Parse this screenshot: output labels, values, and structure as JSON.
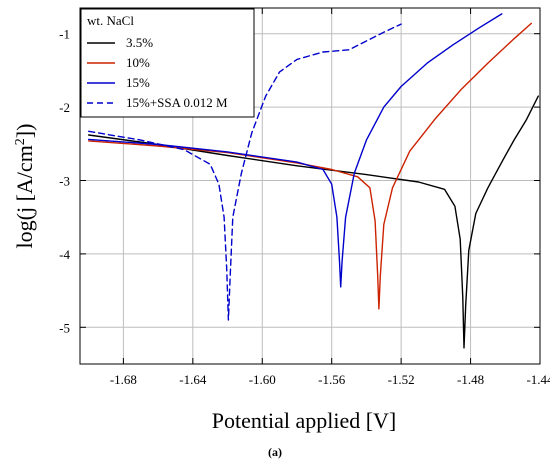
{
  "chart_data": {
    "type": "line",
    "title": "",
    "xlabel": "Potential applied [V]",
    "ylabel_main": "log(j [A/cm",
    "ylabel_sup": "2",
    "ylabel_end": "])",
    "xlim": [
      -1.705,
      -1.44
    ],
    "ylim": [
      -5.5,
      -0.65
    ],
    "x_ticks": [
      -1.68,
      -1.64,
      -1.6,
      -1.56,
      -1.52,
      -1.48,
      -1.44
    ],
    "x_tick_labels": [
      "-1.68",
      "-1.64",
      "-1.60",
      "-1.56",
      "-1.52",
      "-1.48",
      "-1.44"
    ],
    "y_ticks": [
      -5,
      -4,
      -3,
      -2,
      -1
    ],
    "y_tick_labels": [
      "-5",
      "-4",
      "-3",
      "-2",
      "-1"
    ],
    "grid": true,
    "legend_title": "wt. NaCl",
    "legend_placement": "top-left",
    "caption": "(a)",
    "series": [
      {
        "name": "3.5%",
        "color": "#000000",
        "dash": "solid",
        "points": [
          [
            -1.7,
            -2.38
          ],
          [
            -1.66,
            -2.51
          ],
          [
            -1.62,
            -2.66
          ],
          [
            -1.58,
            -2.8
          ],
          [
            -1.54,
            -2.92
          ],
          [
            -1.51,
            -3.02
          ],
          [
            -1.495,
            -3.12
          ],
          [
            -1.489,
            -3.35
          ],
          [
            -1.486,
            -3.8
          ],
          [
            -1.4845,
            -4.6
          ],
          [
            -1.4838,
            -5.28
          ],
          [
            -1.4828,
            -4.7
          ],
          [
            -1.481,
            -3.95
          ],
          [
            -1.477,
            -3.45
          ],
          [
            -1.47,
            -3.1
          ],
          [
            -1.462,
            -2.75
          ],
          [
            -1.455,
            -2.45
          ],
          [
            -1.448,
            -2.18
          ],
          [
            -1.441,
            -1.85
          ]
        ]
      },
      {
        "name": "10%",
        "color": "#cc2200",
        "dash": "solid",
        "points": [
          [
            -1.7,
            -2.46
          ],
          [
            -1.66,
            -2.53
          ],
          [
            -1.62,
            -2.62
          ],
          [
            -1.58,
            -2.76
          ],
          [
            -1.56,
            -2.85
          ],
          [
            -1.545,
            -2.95
          ],
          [
            -1.538,
            -3.1
          ],
          [
            -1.535,
            -3.55
          ],
          [
            -1.5335,
            -4.3
          ],
          [
            -1.5328,
            -4.75
          ],
          [
            -1.532,
            -4.3
          ],
          [
            -1.53,
            -3.6
          ],
          [
            -1.525,
            -3.1
          ],
          [
            -1.515,
            -2.6
          ],
          [
            -1.5,
            -2.15
          ],
          [
            -1.485,
            -1.75
          ],
          [
            -1.47,
            -1.4
          ],
          [
            -1.455,
            -1.07
          ],
          [
            -1.445,
            -0.86
          ]
        ]
      },
      {
        "name": "15%",
        "color": "#0000cc",
        "dash": "solid",
        "points": [
          [
            -1.7,
            -2.44
          ],
          [
            -1.66,
            -2.51
          ],
          [
            -1.62,
            -2.61
          ],
          [
            -1.58,
            -2.75
          ],
          [
            -1.565,
            -2.85
          ],
          [
            -1.56,
            -3.05
          ],
          [
            -1.557,
            -3.5
          ],
          [
            -1.5555,
            -4.1
          ],
          [
            -1.5548,
            -4.45
          ],
          [
            -1.554,
            -4.1
          ],
          [
            -1.552,
            -3.5
          ],
          [
            -1.547,
            -2.9
          ],
          [
            -1.54,
            -2.45
          ],
          [
            -1.53,
            -2.0
          ],
          [
            -1.52,
            -1.72
          ],
          [
            -1.505,
            -1.4
          ],
          [
            -1.49,
            -1.15
          ],
          [
            -1.475,
            -0.92
          ],
          [
            -1.462,
            -0.73
          ]
        ]
      },
      {
        "name": "15%+SSA 0.012 M",
        "color": "#0000cc",
        "dash": "dashed",
        "points": [
          [
            -1.7,
            -2.33
          ],
          [
            -1.67,
            -2.45
          ],
          [
            -1.645,
            -2.58
          ],
          [
            -1.63,
            -2.78
          ],
          [
            -1.625,
            -3.05
          ],
          [
            -1.622,
            -3.5
          ],
          [
            -1.6205,
            -4.2
          ],
          [
            -1.6195,
            -4.9
          ],
          [
            -1.6185,
            -4.3
          ],
          [
            -1.617,
            -3.5
          ],
          [
            -1.612,
            -2.9
          ],
          [
            -1.606,
            -2.35
          ],
          [
            -1.598,
            -1.85
          ],
          [
            -1.59,
            -1.52
          ],
          [
            -1.58,
            -1.35
          ],
          [
            -1.565,
            -1.25
          ],
          [
            -1.55,
            -1.22
          ],
          [
            -1.54,
            -1.1
          ],
          [
            -1.53,
            -0.98
          ],
          [
            -1.52,
            -0.87
          ]
        ]
      }
    ]
  }
}
